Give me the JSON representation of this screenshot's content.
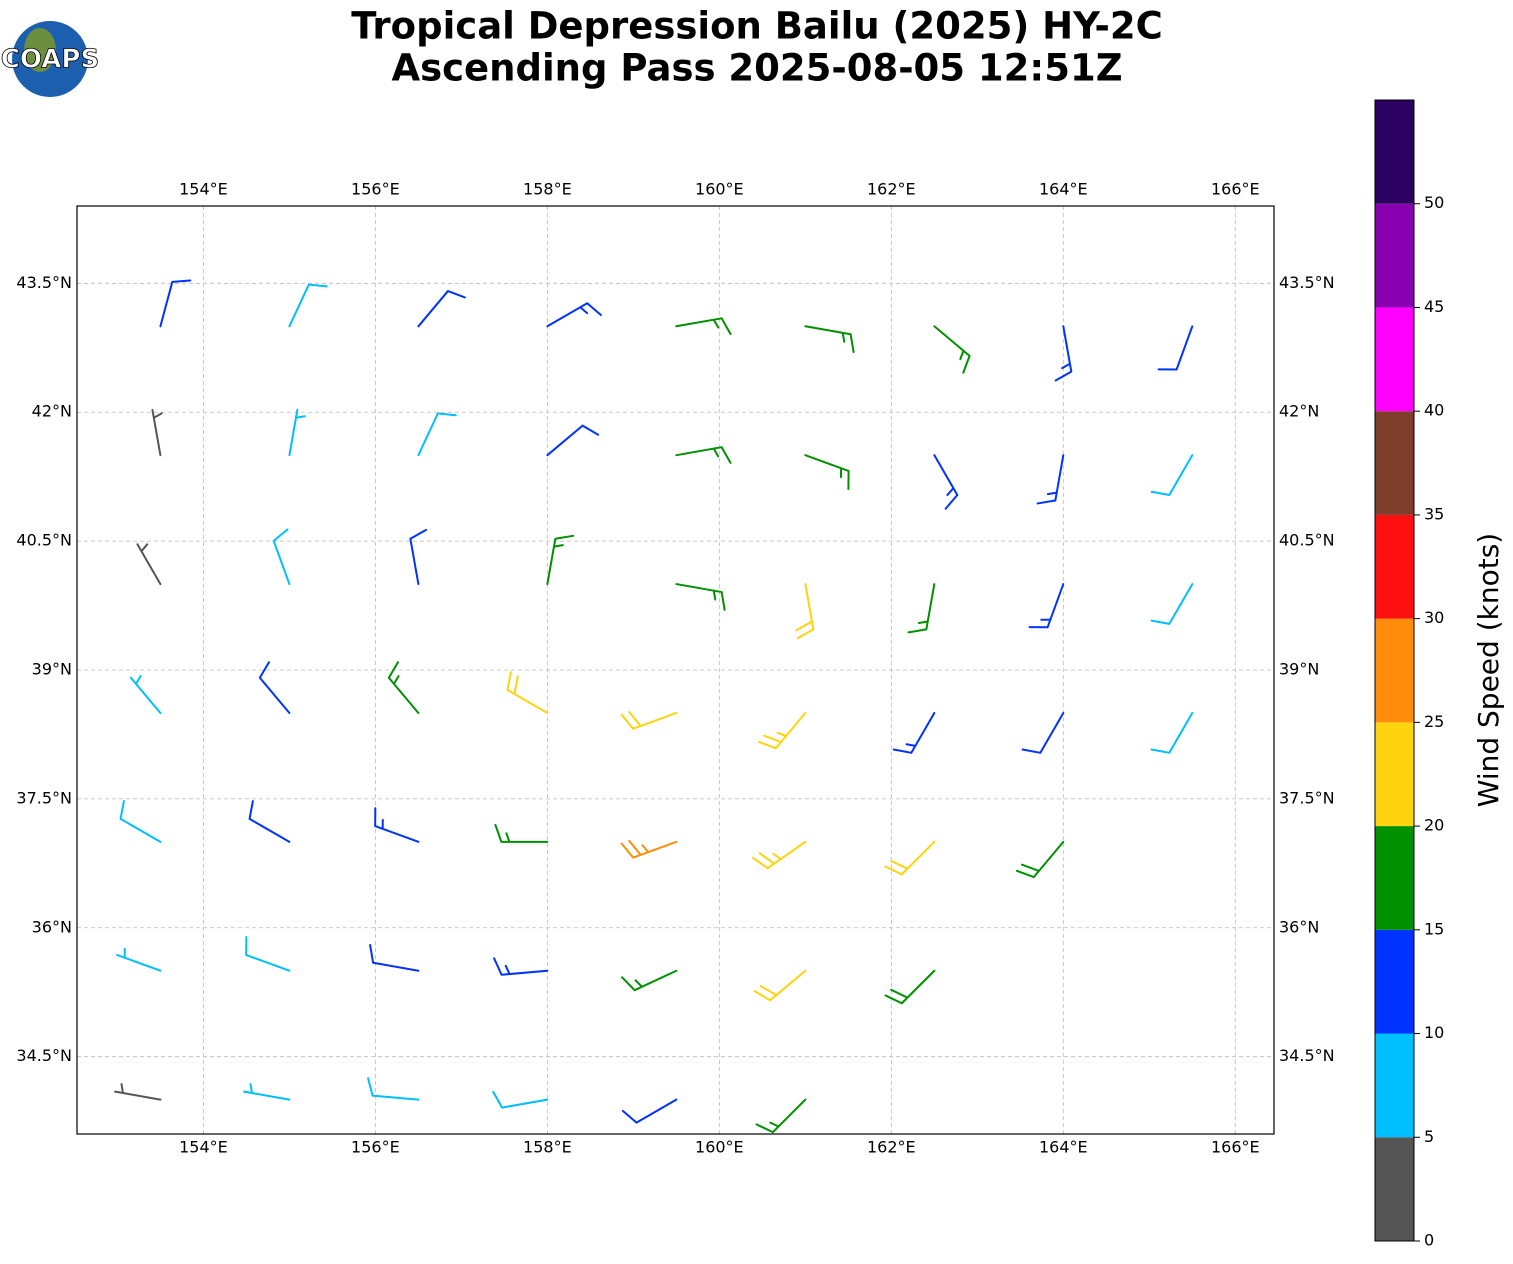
{
  "chart_data": {
    "type": "barbs",
    "title": "Tropical Depression Bailu (2025) HY-2C",
    "subtitle": "Ascending Pass 2025-08-05 12:51Z",
    "logo": "COAPS",
    "xlim": [
      152.53,
      166.45
    ],
    "ylim": [
      33.6,
      44.4
    ],
    "xticks": [
      {
        "value": 154,
        "label": "154°E"
      },
      {
        "value": 156,
        "label": "156°E"
      },
      {
        "value": 158,
        "label": "158°E"
      },
      {
        "value": 160,
        "label": "160°E"
      },
      {
        "value": 162,
        "label": "162°E"
      },
      {
        "value": 164,
        "label": "164°E"
      },
      {
        "value": 166,
        "label": "166°E"
      }
    ],
    "yticks": [
      {
        "value": 34.5,
        "label": "34.5°N"
      },
      {
        "value": 36,
        "label": "36°N"
      },
      {
        "value": 37.5,
        "label": "37.5°N"
      },
      {
        "value": 39,
        "label": "39°N"
      },
      {
        "value": 40.5,
        "label": "40.5°N"
      },
      {
        "value": 42,
        "label": "42°N"
      },
      {
        "value": 43.5,
        "label": "43.5°N"
      }
    ],
    "grid": true,
    "grid_lon": [
      153.5,
      155,
      156.5,
      158,
      159.5,
      161,
      162.5,
      164,
      165.5
    ],
    "grid_lat": [
      34,
      35.5,
      37,
      38.5,
      40,
      41.5,
      43
    ],
    "speed": [
      [
        4,
        7,
        8,
        9,
        12,
        15,
        null,
        null,
        null
      ],
      [
        7,
        8,
        11,
        13,
        16,
        21,
        18,
        null,
        null
      ],
      [
        8,
        12,
        14,
        17,
        26,
        23,
        21,
        18,
        null
      ],
      [
        7,
        12,
        17,
        22,
        21,
        23,
        14,
        12,
        9
      ],
      [
        4,
        8,
        12,
        16,
        15,
        22,
        17,
        13,
        8
      ],
      [
        3,
        7,
        9,
        12,
        16,
        17,
        14,
        13,
        9
      ],
      [
        12,
        8,
        11,
        13,
        16,
        17,
        16,
        14,
        12
      ]
    ],
    "direction": [
      [
        280,
        280,
        275,
        260,
        240,
        225,
        null,
        null,
        null
      ],
      [
        290,
        290,
        280,
        265,
        245,
        230,
        225,
        null,
        null
      ],
      [
        300,
        300,
        290,
        270,
        250,
        235,
        225,
        220,
        null
      ],
      [
        320,
        320,
        320,
        300,
        250,
        220,
        210,
        210,
        210
      ],
      [
        330,
        340,
        350,
        10,
        100,
        170,
        190,
        200,
        210
      ],
      [
        350,
        10,
        25,
        50,
        80,
        110,
        150,
        190,
        210
      ],
      [
        15,
        25,
        40,
        60,
        80,
        100,
        130,
        170,
        200
      ]
    ],
    "colorbar": {
      "label": "Wind Speed (knots)",
      "bounds": [
        0,
        5,
        10,
        15,
        20,
        25,
        30,
        35,
        40,
        45,
        50,
        55
      ],
      "colors": [
        "#555555",
        "#00bfff",
        "#0033ff",
        "#009000",
        "#fdd40f",
        "#ff8c0a",
        "#ff1010",
        "#7f3d2c",
        "#ff00ff",
        "#8800b0",
        "#2a0060"
      ],
      "ticks": [
        0,
        5,
        10,
        15,
        20,
        25,
        30,
        35,
        40,
        45,
        50
      ]
    }
  }
}
